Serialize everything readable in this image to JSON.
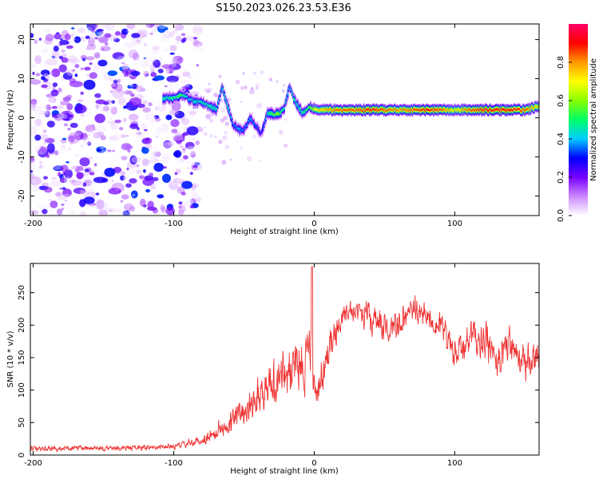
{
  "title": "S150.2023.026.23.53.E36",
  "chart_data": [
    {
      "type": "heatmap",
      "xlabel": "Height of straight line (km)",
      "ylabel": "Frequency (Hz)",
      "xlim": [
        -202,
        160
      ],
      "ylim": [
        -25,
        24
      ],
      "x_ticks": [
        -200,
        -100,
        0,
        100
      ],
      "x_tick_labels": [
        "-200",
        "-100",
        "0",
        "100"
      ],
      "y_ticks": [
        -20,
        -10,
        0,
        10,
        20
      ],
      "y_tick_labels": [
        "-20",
        "-10",
        "0",
        "10",
        "20"
      ],
      "colorbar": {
        "label": "Normalized spectral amplitude",
        "range": [
          0.0,
          1.0
        ],
        "ticks": [
          0.0,
          0.2,
          0.4,
          0.6,
          0.8
        ],
        "tick_labels": [
          "0.0",
          "0.2",
          "0.4",
          "0.6",
          "0.8"
        ],
        "colors": [
          "#ffffff",
          "#cc88ff",
          "#7700ff",
          "#0000ff",
          "#00ccff",
          "#00ff66",
          "#88ff00",
          "#ffff00",
          "#ff9900",
          "#ff0000",
          "#ff0066"
        ]
      },
      "noise_region_x": [
        -202,
        -82
      ],
      "ridge": {
        "x": [
          -108,
          -100,
          -95,
          -90,
          -85,
          -80,
          -75,
          -70,
          -66,
          -62,
          -58,
          -54,
          -50,
          -46,
          -42,
          -38,
          -34,
          -30,
          -26,
          -22,
          -18,
          -15,
          -12,
          -8,
          -4,
          0,
          10,
          20,
          30,
          40,
          50,
          60,
          70,
          80,
          90,
          100,
          110,
          120,
          130,
          140,
          150,
          160
        ],
        "frequency": [
          5,
          5,
          6,
          5,
          4,
          4,
          3,
          2,
          8,
          3,
          -2,
          -3,
          -3,
          0,
          -2,
          -4,
          1,
          1,
          1,
          2,
          8,
          5,
          3,
          1,
          3,
          2,
          2,
          2,
          2,
          2,
          2,
          2,
          2,
          2,
          2,
          2,
          2,
          2,
          2,
          2,
          2,
          3
        ],
        "amplitude": [
          0.45,
          0.5,
          0.55,
          0.4,
          0.45,
          0.45,
          0.5,
          0.45,
          0.45,
          0.5,
          0.35,
          0.4,
          0.35,
          0.4,
          0.35,
          0.3,
          0.45,
          0.55,
          0.6,
          0.45,
          0.4,
          0.5,
          0.45,
          0.5,
          0.55,
          0.7,
          0.8,
          0.85,
          0.85,
          0.9,
          0.85,
          0.8,
          0.85,
          0.9,
          0.85,
          0.7,
          0.85,
          0.9,
          0.9,
          0.9,
          0.85,
          0.7
        ]
      }
    },
    {
      "type": "line",
      "xlabel": "Height of straight line (km)",
      "ylabel": "SNR (10 * v/v)",
      "xlim": [
        -202,
        160
      ],
      "ylim": [
        0,
        295
      ],
      "x_ticks": [
        -200,
        -100,
        0,
        100
      ],
      "x_tick_labels": [
        "-200",
        "-100",
        "0",
        "100"
      ],
      "y_ticks": [
        0,
        50,
        100,
        150,
        200,
        250
      ],
      "y_tick_labels": [
        "0",
        "50",
        "100",
        "150",
        "200",
        "250"
      ],
      "color": "#ee3333",
      "envelope": {
        "x": [
          -202,
          -150,
          -100,
          -80,
          -70,
          -60,
          -50,
          -40,
          -30,
          -20,
          -10,
          -5,
          -2,
          0,
          5,
          10,
          20,
          30,
          40,
          50,
          60,
          70,
          80,
          90,
          100,
          110,
          120,
          130,
          140,
          150,
          160
        ],
        "mean": [
          10,
          10,
          13,
          22,
          35,
          50,
          70,
          95,
          110,
          125,
          140,
          150,
          165,
          80,
          130,
          160,
          215,
          225,
          210,
          195,
          200,
          225,
          215,
          200,
          150,
          180,
          175,
          150,
          175,
          140,
          150
        ],
        "spread": [
          8,
          8,
          8,
          15,
          25,
          35,
          45,
          55,
          70,
          75,
          80,
          90,
          120,
          60,
          60,
          60,
          35,
          35,
          40,
          45,
          40,
          40,
          40,
          45,
          50,
          50,
          55,
          60,
          60,
          50,
          45
        ]
      }
    }
  ]
}
